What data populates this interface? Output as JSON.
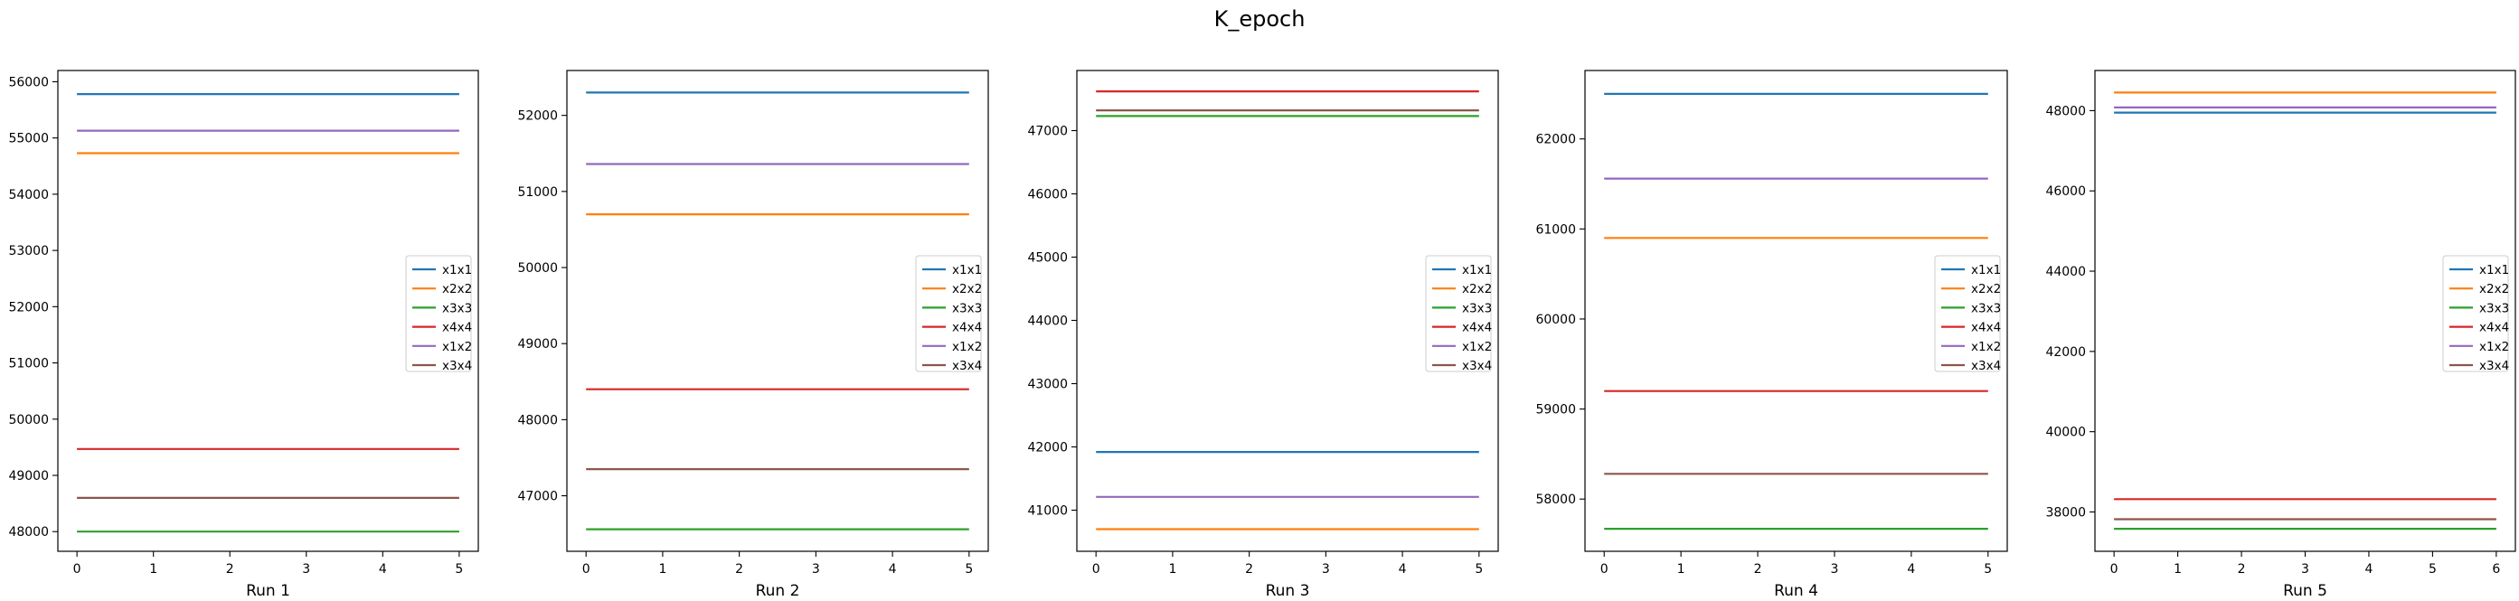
{
  "suptitle": "K_epoch",
  "colors": {
    "x1x1": "#1f77b4",
    "x2x2": "#ff7f0e",
    "x3x3": "#2ca02c",
    "x4x4": "#d62728",
    "x1x2": "#9467bd",
    "x3x4": "#8c564b"
  },
  "chart_data": [
    {
      "type": "line",
      "xlabel": "Run 1",
      "ylabel": "",
      "xlim": [
        -0.25,
        5.25
      ],
      "ylim": [
        47650,
        56200
      ],
      "xticks": [
        0,
        1,
        2,
        3,
        4,
        5
      ],
      "yticks": [
        48000,
        49000,
        50000,
        51000,
        52000,
        53000,
        54000,
        55000,
        56000
      ],
      "grid": false,
      "legend_position": "center-right",
      "x": [
        0,
        1,
        2,
        3,
        4,
        5
      ],
      "series": [
        {
          "name": "x1x1",
          "values": [
            55780,
            55780,
            55780,
            55780,
            55780,
            55780
          ]
        },
        {
          "name": "x2x2",
          "values": [
            54730,
            54730,
            54730,
            54730,
            54730,
            54730
          ]
        },
        {
          "name": "x3x3",
          "values": [
            48000,
            48000,
            48000,
            48000,
            48000,
            48000
          ]
        },
        {
          "name": "x4x4",
          "values": [
            49470,
            49470,
            49470,
            49470,
            49470,
            49470
          ]
        },
        {
          "name": "x1x2",
          "values": [
            55130,
            55130,
            55130,
            55130,
            55130,
            55130
          ]
        },
        {
          "name": "x3x4",
          "values": [
            48600,
            48600,
            48600,
            48600,
            48600,
            48600
          ]
        }
      ]
    },
    {
      "type": "line",
      "xlabel": "Run 2",
      "ylabel": "",
      "xlim": [
        -0.25,
        5.25
      ],
      "ylim": [
        46270,
        52590
      ],
      "xticks": [
        0,
        1,
        2,
        3,
        4,
        5
      ],
      "yticks": [
        47000,
        48000,
        49000,
        50000,
        51000,
        52000
      ],
      "grid": false,
      "legend_position": "center-right",
      "x": [
        0,
        1,
        2,
        3,
        4,
        5
      ],
      "series": [
        {
          "name": "x1x1",
          "values": [
            52300,
            52300,
            52300,
            52300,
            52300,
            52300
          ]
        },
        {
          "name": "x2x2",
          "values": [
            50700,
            50700,
            50700,
            50700,
            50700,
            50700
          ]
        },
        {
          "name": "x3x3",
          "values": [
            46560,
            46560,
            46560,
            46560,
            46560,
            46560
          ]
        },
        {
          "name": "x4x4",
          "values": [
            48400,
            48400,
            48400,
            48400,
            48400,
            48400
          ]
        },
        {
          "name": "x1x2",
          "values": [
            51360,
            51360,
            51360,
            51360,
            51360,
            51360
          ]
        },
        {
          "name": "x3x4",
          "values": [
            47350,
            47350,
            47350,
            47350,
            47350,
            47350
          ]
        }
      ]
    },
    {
      "type": "line",
      "xlabel": "Run 3",
      "ylabel": "",
      "xlim": [
        -0.25,
        5.25
      ],
      "ylim": [
        40350,
        47950
      ],
      "xticks": [
        0,
        1,
        2,
        3,
        4,
        5
      ],
      "yticks": [
        41000,
        42000,
        43000,
        44000,
        45000,
        46000,
        47000
      ],
      "grid": false,
      "legend_position": "center-right",
      "x": [
        0,
        1,
        2,
        3,
        4,
        5
      ],
      "series": [
        {
          "name": "x1x1",
          "values": [
            41920,
            41920,
            41920,
            41920,
            41920,
            41920
          ]
        },
        {
          "name": "x2x2",
          "values": [
            40700,
            40700,
            40700,
            40700,
            40700,
            40700
          ]
        },
        {
          "name": "x3x3",
          "values": [
            47230,
            47230,
            47230,
            47230,
            47230,
            47230
          ]
        },
        {
          "name": "x4x4",
          "values": [
            47620,
            47620,
            47620,
            47620,
            47620,
            47620
          ]
        },
        {
          "name": "x1x2",
          "values": [
            41210,
            41210,
            41210,
            41210,
            41210,
            41210
          ]
        },
        {
          "name": "x3x4",
          "values": [
            47320,
            47320,
            47320,
            47320,
            47320,
            47320
          ]
        }
      ]
    },
    {
      "type": "line",
      "xlabel": "Run 4",
      "ylabel": "",
      "xlim": [
        -0.25,
        5.25
      ],
      "ylim": [
        57420,
        62760
      ],
      "xticks": [
        0,
        1,
        2,
        3,
        4,
        5
      ],
      "yticks": [
        58000,
        59000,
        60000,
        61000,
        62000
      ],
      "grid": false,
      "legend_position": "center-right",
      "x": [
        0,
        1,
        2,
        3,
        4,
        5
      ],
      "series": [
        {
          "name": "x1x1",
          "values": [
            62500,
            62500,
            62500,
            62500,
            62500,
            62500
          ]
        },
        {
          "name": "x2x2",
          "values": [
            60900,
            60900,
            60900,
            60900,
            60900,
            60900
          ]
        },
        {
          "name": "x3x3",
          "values": [
            57670,
            57670,
            57670,
            57670,
            57670,
            57670
          ]
        },
        {
          "name": "x4x4",
          "values": [
            59200,
            59200,
            59200,
            59200,
            59200,
            59200
          ]
        },
        {
          "name": "x1x2",
          "values": [
            61560,
            61560,
            61560,
            61560,
            61560,
            61560
          ]
        },
        {
          "name": "x3x4",
          "values": [
            58280,
            58280,
            58280,
            58280,
            58280,
            58280
          ]
        }
      ]
    },
    {
      "type": "line",
      "xlabel": "Run 5",
      "ylabel": "",
      "xlim": [
        -0.3,
        6.3
      ],
      "ylim": [
        37020,
        49000
      ],
      "xticks": [
        0,
        1,
        2,
        3,
        4,
        5,
        6
      ],
      "yticks": [
        38000,
        40000,
        42000,
        44000,
        46000,
        48000
      ],
      "grid": false,
      "legend_position": "center-right",
      "x": [
        0,
        1,
        2,
        3,
        4,
        5,
        6
      ],
      "series": [
        {
          "name": "x1x1",
          "values": [
            47950,
            47950,
            47950,
            47950,
            47950,
            47950,
            47950
          ]
        },
        {
          "name": "x2x2",
          "values": [
            48450,
            48450,
            48450,
            48450,
            48450,
            48450,
            48450
          ]
        },
        {
          "name": "x3x3",
          "values": [
            37580,
            37580,
            37580,
            37580,
            37580,
            37580,
            37580
          ]
        },
        {
          "name": "x4x4",
          "values": [
            38320,
            38320,
            38320,
            38320,
            38320,
            38320,
            38320
          ]
        },
        {
          "name": "x1x2",
          "values": [
            48080,
            48080,
            48080,
            48080,
            48080,
            48080,
            48080
          ]
        },
        {
          "name": "x3x4",
          "values": [
            37820,
            37820,
            37820,
            37820,
            37820,
            37820,
            37820
          ]
        }
      ]
    }
  ]
}
